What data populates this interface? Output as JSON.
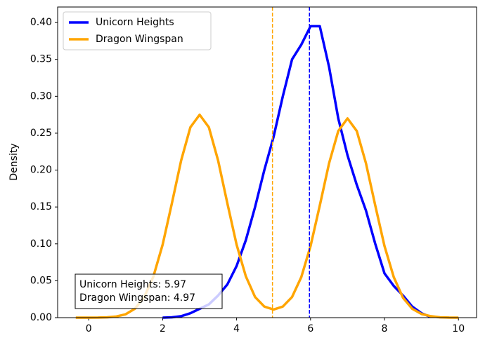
{
  "chart_data": {
    "type": "line",
    "ylabel": "Density",
    "x": [
      -0.35,
      0,
      0.25,
      0.5,
      0.75,
      1,
      1.25,
      1.5,
      1.75,
      2,
      2.25,
      2.5,
      2.75,
      3,
      3.25,
      3.5,
      3.75,
      4,
      4.25,
      4.5,
      4.75,
      5,
      5.25,
      5.5,
      5.75,
      6,
      6.25,
      6.5,
      6.75,
      7,
      7.25,
      7.5,
      7.75,
      8,
      8.25,
      8.5,
      8.75,
      9,
      9.25,
      9.5,
      9.75,
      10
    ],
    "series": [
      {
        "name": "Unicorn Heights",
        "color": "#0000ff",
        "mean": 5.97,
        "values": [
          null,
          null,
          null,
          null,
          null,
          null,
          null,
          null,
          null,
          0,
          0.0005,
          0.002,
          0.006,
          0.012,
          0.018,
          0.03,
          0.045,
          0.07,
          0.105,
          0.15,
          0.2,
          0.245,
          0.3,
          0.35,
          0.37,
          0.395,
          0.395,
          0.34,
          0.27,
          0.22,
          0.18,
          0.145,
          0.1,
          0.06,
          0.043,
          0.03,
          0.015,
          0.006,
          0.001,
          null,
          null,
          null
        ]
      },
      {
        "name": "Dragon Wingspan",
        "color": "#ffa500",
        "mean": 4.97,
        "values": [
          0,
          0,
          0.0001,
          0.0005,
          0.0016,
          0.0046,
          0.0121,
          0.0277,
          0.0558,
          0.099,
          0.155,
          0.213,
          0.258,
          0.275,
          0.258,
          0.213,
          0.155,
          0.099,
          0.056,
          0.028,
          0.015,
          0.011,
          0.015,
          0.028,
          0.055,
          0.097,
          0.152,
          0.209,
          0.253,
          0.27,
          0.253,
          0.209,
          0.152,
          0.097,
          0.055,
          0.027,
          0.012,
          0.005,
          0.002,
          0.0005,
          0.0001,
          0
        ]
      }
    ],
    "annotations": [
      "Unicorn Heights: 5.97",
      "Dragon Wingspan: 4.97"
    ],
    "xlim": [
      -0.84,
      10.49
    ],
    "ylim": [
      0,
      0.421
    ],
    "xticks": [
      0,
      2,
      4,
      6,
      8,
      10
    ],
    "yticks": [
      {
        "value": 0,
        "label": "0.00"
      },
      {
        "value": 0.05,
        "label": "0.05"
      },
      {
        "value": 0.1,
        "label": "0.10"
      },
      {
        "value": 0.15,
        "label": "0.15"
      },
      {
        "value": 0.2,
        "label": "0.20"
      },
      {
        "value": 0.25,
        "label": "0.25"
      },
      {
        "value": 0.3,
        "label": "0.30"
      },
      {
        "value": 0.35,
        "label": "0.35"
      },
      {
        "value": 0.4,
        "label": "0.40"
      }
    ],
    "legend": "upper left"
  }
}
